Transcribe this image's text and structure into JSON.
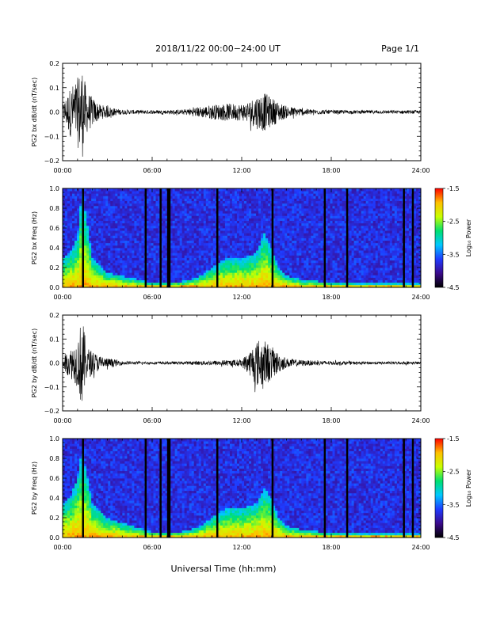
{
  "header": {
    "title": "2018/11/22  00:00−24:00 UT",
    "page": "Page 1/1"
  },
  "footer": {
    "xlabel": "Universal Time (hh:mm)"
  },
  "colors": {
    "waveform": "#000000",
    "spectrogram_background": "#3a0a6a",
    "colormap": [
      "#000000",
      "#3b0a8c",
      "#1f3bff",
      "#00c8ff",
      "#00e070",
      "#c8ff00",
      "#ffc000",
      "#ff0000"
    ]
  },
  "chart_data": [
    {
      "type": "line",
      "ylabel": "PG2 bx dB/dt (nT/sec)",
      "xlim": [
        0,
        24
      ],
      "ylim": [
        -0.2,
        0.2
      ],
      "xticks": [
        "00:00",
        "06:00",
        "12:00",
        "18:00",
        "24:00"
      ],
      "yticks": [
        "0.2",
        "0.1",
        "0.0",
        "−0.1",
        "−0.2"
      ],
      "amplitude_envelope": {
        "x": [
          0,
          0.5,
          1.0,
          1.3,
          1.6,
          2.0,
          2.5,
          3.0,
          3.5,
          4.0,
          5.0,
          6.0,
          7.0,
          8.0,
          9.0,
          10.0,
          11.0,
          12.0,
          12.5,
          13.0,
          13.5,
          14.0,
          14.5,
          15.0,
          16.0,
          17.0,
          18.0,
          20.0,
          22.0,
          24.0
        ],
        "y": [
          0.03,
          0.1,
          0.14,
          0.2,
          0.09,
          0.06,
          0.03,
          0.025,
          0.015,
          0.01,
          0.008,
          0.008,
          0.008,
          0.01,
          0.02,
          0.03,
          0.035,
          0.035,
          0.045,
          0.07,
          0.08,
          0.06,
          0.04,
          0.025,
          0.015,
          0.01,
          0.008,
          0.007,
          0.007,
          0.007
        ]
      }
    },
    {
      "type": "heatmap",
      "ylabel": "PG2 bx Freq (Hz)",
      "xlim": [
        0,
        24
      ],
      "ylim": [
        0,
        1.0
      ],
      "xticks": [
        "00:00",
        "06:00",
        "12:00",
        "18:00",
        "24:00"
      ],
      "yticks": [
        "1.0",
        "0.8",
        "0.6",
        "0.4",
        "0.2",
        "0.0"
      ],
      "colorbar": {
        "label": "Log₁₀ Power",
        "range": [
          -4.5,
          -1.5
        ],
        "ticks": [
          "-1.5",
          "-2.5",
          "-3.5",
          "-4.5"
        ]
      },
      "dark_gap_hours": [
        1.3,
        5.5,
        6.5,
        7.0,
        7.1,
        10.3,
        14.0,
        17.5,
        19.0,
        22.8,
        23.4
      ],
      "activity": {
        "x": [
          0,
          0.5,
          1.0,
          1.3,
          2.0,
          3.0,
          4.0,
          6.0,
          8.0,
          9.0,
          10.0,
          11.0,
          12.0,
          13.0,
          13.5,
          14.0,
          14.5,
          15.0,
          16.0,
          18.0,
          20.0,
          24.0
        ],
        "fmax": [
          0.3,
          0.35,
          0.5,
          1.0,
          0.3,
          0.15,
          0.12,
          0.05,
          0.06,
          0.1,
          0.2,
          0.3,
          0.3,
          0.35,
          0.55,
          0.4,
          0.2,
          0.12,
          0.08,
          0.05,
          0.04,
          0.04
        ]
      }
    },
    {
      "type": "line",
      "ylabel": "PG2 by dB/dt (nT/sec)",
      "xlim": [
        0,
        24
      ],
      "ylim": [
        -0.2,
        0.2
      ],
      "xticks": [
        "00:00",
        "06:00",
        "12:00",
        "18:00",
        "24:00"
      ],
      "yticks": [
        "0.2",
        "0.1",
        "0.0",
        "−0.1",
        "−0.2"
      ],
      "amplitude_envelope": {
        "x": [
          0,
          0.5,
          1.0,
          1.3,
          1.6,
          2.0,
          2.5,
          3.0,
          3.5,
          4.0,
          5.0,
          6.0,
          7.0,
          8.0,
          9.0,
          10.0,
          11.0,
          12.0,
          12.5,
          13.0,
          13.5,
          14.0,
          14.5,
          15.0,
          16.0,
          17.0,
          18.0,
          20.0,
          22.0,
          24.0
        ],
        "y": [
          0.03,
          0.06,
          0.1,
          0.2,
          0.07,
          0.05,
          0.03,
          0.02,
          0.015,
          0.008,
          0.006,
          0.006,
          0.006,
          0.006,
          0.008,
          0.01,
          0.012,
          0.015,
          0.05,
          0.1,
          0.1,
          0.07,
          0.04,
          0.02,
          0.012,
          0.01,
          0.008,
          0.006,
          0.006,
          0.006
        ]
      }
    },
    {
      "type": "heatmap",
      "ylabel": "PG2 by Freq (Hz)",
      "xlim": [
        0,
        24
      ],
      "ylim": [
        0,
        1.0
      ],
      "xticks": [
        "00:00",
        "06:00",
        "12:00",
        "18:00",
        "24:00"
      ],
      "yticks": [
        "1.0",
        "0.8",
        "0.6",
        "0.4",
        "0.2",
        "0.0"
      ],
      "colorbar": {
        "label": "Log₁₀ Power",
        "range": [
          -4.5,
          -1.5
        ],
        "ticks": [
          "-1.5",
          "-2.5",
          "-3.5",
          "-4.5"
        ]
      },
      "dark_gap_hours": [
        1.3,
        5.5,
        6.5,
        7.0,
        7.1,
        10.3,
        14.0,
        17.5,
        19.0,
        22.8,
        23.4
      ],
      "activity": {
        "x": [
          0,
          0.5,
          1.0,
          1.3,
          2.0,
          3.0,
          4.0,
          6.0,
          8.0,
          9.0,
          10.0,
          11.0,
          12.0,
          13.0,
          13.5,
          14.0,
          14.5,
          15.0,
          16.0,
          18.0,
          20.0,
          24.0
        ],
        "fmax": [
          0.35,
          0.4,
          0.6,
          0.9,
          0.35,
          0.2,
          0.15,
          0.06,
          0.06,
          0.1,
          0.2,
          0.3,
          0.3,
          0.35,
          0.5,
          0.4,
          0.2,
          0.12,
          0.08,
          0.05,
          0.04,
          0.04
        ]
      }
    }
  ]
}
